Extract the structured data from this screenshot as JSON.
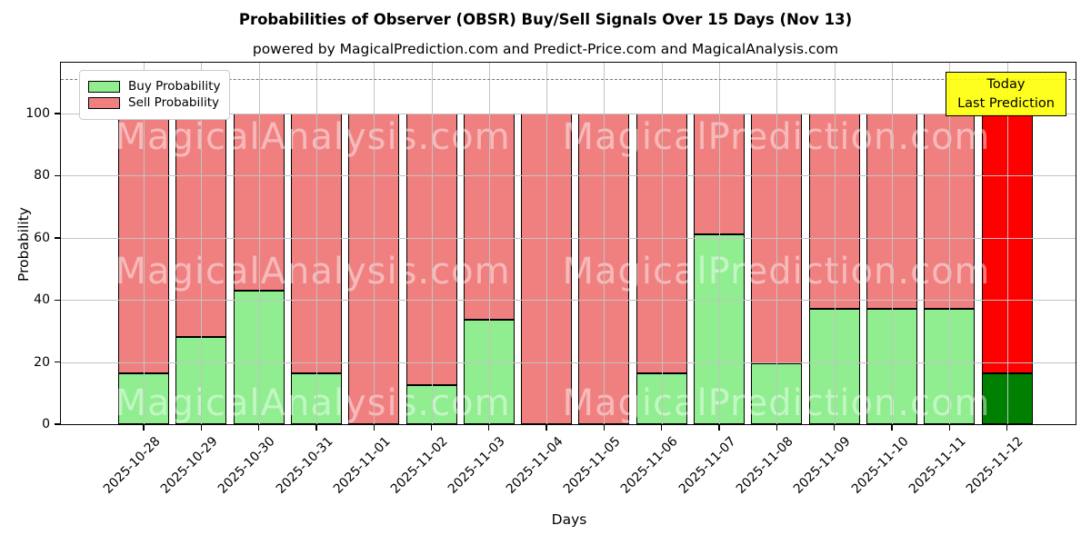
{
  "title": "Probabilities of Observer (OBSR) Buy/Sell Signals Over 15 Days (Nov 13)",
  "subtitle": "powered by MagicalPrediction.com and Predict-Price.com and MagicalAnalysis.com",
  "axes": {
    "ylabel": "Probability",
    "xlabel": "Days",
    "yticks": [
      0,
      20,
      40,
      60,
      80,
      100
    ],
    "ylim": [
      0,
      116.4
    ],
    "dashed_line_y": 111,
    "grid": "on"
  },
  "legend": [
    {
      "label": "Buy Probability",
      "color": "#90EE90"
    },
    {
      "label": "Sell Probability",
      "color": "#F08080"
    }
  ],
  "annotation": {
    "line1": "Today",
    "line2": "Last Prediction"
  },
  "watermark": {
    "left": "MagicalAnalysis.com",
    "right": "MagicalPrediction.com"
  },
  "chart_data": {
    "type": "bar",
    "stacked": true,
    "categories": [
      "2025-10-28",
      "2025-10-29",
      "2025-10-30",
      "2025-10-31",
      "2025-11-01",
      "2025-11-02",
      "2025-11-03",
      "2025-11-04",
      "2025-11-05",
      "2025-11-06",
      "2025-11-07",
      "2025-11-08",
      "2025-11-09",
      "2025-11-10",
      "2025-11-11",
      "2025-11-12"
    ],
    "series": [
      {
        "name": "Buy Probability",
        "values": [
          16.5,
          28,
          43,
          16.5,
          0,
          12.5,
          33.5,
          0,
          0,
          16.5,
          61,
          19.5,
          37,
          37,
          37,
          16.5
        ]
      },
      {
        "name": "Sell Probability",
        "values": [
          83.5,
          72,
          57,
          83.5,
          100,
          87.5,
          66.5,
          100,
          100,
          83.5,
          39,
          80.5,
          63,
          63,
          63,
          83.5
        ]
      }
    ],
    "colors": {
      "buy": "#90EE90",
      "sell": "#F08080",
      "today_buy": "#008000",
      "today_sell": "#FF0000",
      "edge": "#000000"
    },
    "today_index": 15,
    "legend_position": "upper left"
  }
}
